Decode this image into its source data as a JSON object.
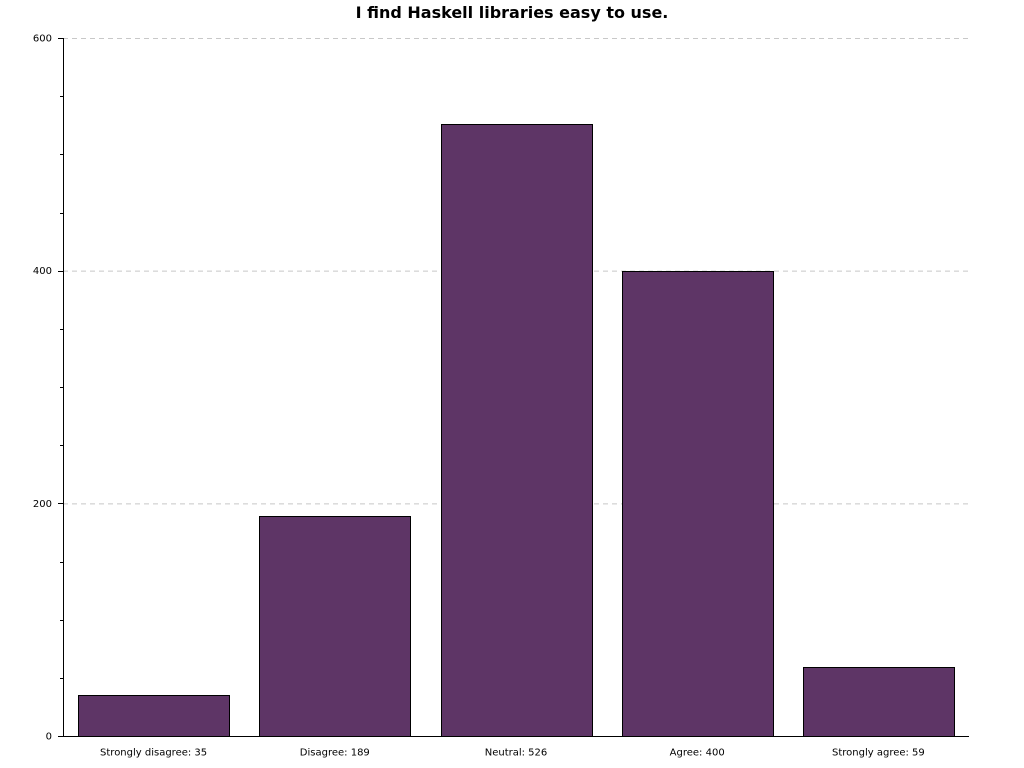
{
  "chart_data": {
    "type": "bar",
    "title": "I find Haskell libraries easy to use.",
    "categories": [
      "Strongly disagree: 35",
      "Disagree: 189",
      "Neutral: 526",
      "Agree: 400",
      "Strongly agree: 59"
    ],
    "values": [
      35,
      189,
      526,
      400,
      59
    ],
    "xlabel": "",
    "ylabel": "",
    "ylim": [
      0,
      600
    ],
    "yticks": [
      0,
      200,
      400,
      600
    ],
    "y_minor_step": 50,
    "grid": true,
    "bar_color": "#5e3566",
    "bar_edge_color": "#000000",
    "grid_color": "#c8c8c8"
  }
}
